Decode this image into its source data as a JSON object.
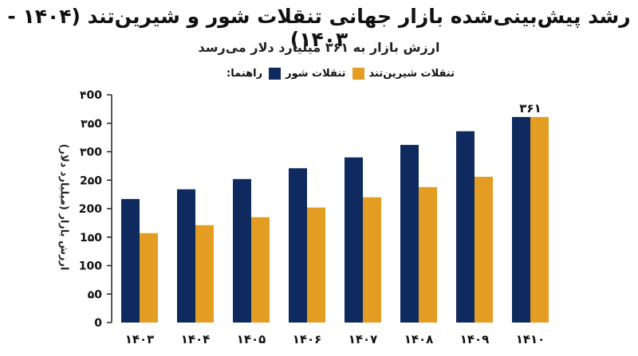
{
  "chart_data": {
    "type": "bar",
    "title": "رشد پیش‌بینی‌شده بازار جهانی تنقلات شور و شیرین‌تند (۱۴۰۴ - ۱۴۰۳)",
    "subtitle": "ارزش بازار به ۳۶۱ میلیارد دلار می‌رسد",
    "ylabel": "ارزش بازار (میلیارد دلار)",
    "xlabel": "",
    "legend_title": "راهنما:",
    "legend_position": "top",
    "grid": false,
    "categories": [
      "۱۴۰۳",
      "۱۴۰۴",
      "۱۴۰۵",
      "۱۴۰۶",
      "۱۴۰۷",
      "۱۴۰۸",
      "۱۴۰۹",
      "۱۴۱۰"
    ],
    "series": [
      {
        "name": "تنقلات شور",
        "color": "#0e2a5e",
        "values": [
          217,
          234,
          252,
          271,
          290,
          312,
          336,
          361
        ]
      },
      {
        "name": "تنقلات شیرین‌تند",
        "color": "#e39d23",
        "values": [
          157,
          171,
          185,
          202,
          220,
          238,
          256,
          361
        ]
      }
    ],
    "ylim": [
      0,
      400
    ],
    "yticks": [
      0,
      50,
      100,
      150,
      200,
      250,
      300,
      350,
      400
    ],
    "ytick_labels": [
      "0",
      "۵0",
      "100",
      "1۵0",
      "200",
      "2۵0",
      "۳00",
      "۳۵0",
      "۴00"
    ],
    "annotations": [
      {
        "category_index": 7,
        "text": "۳۶۱"
      }
    ]
  }
}
